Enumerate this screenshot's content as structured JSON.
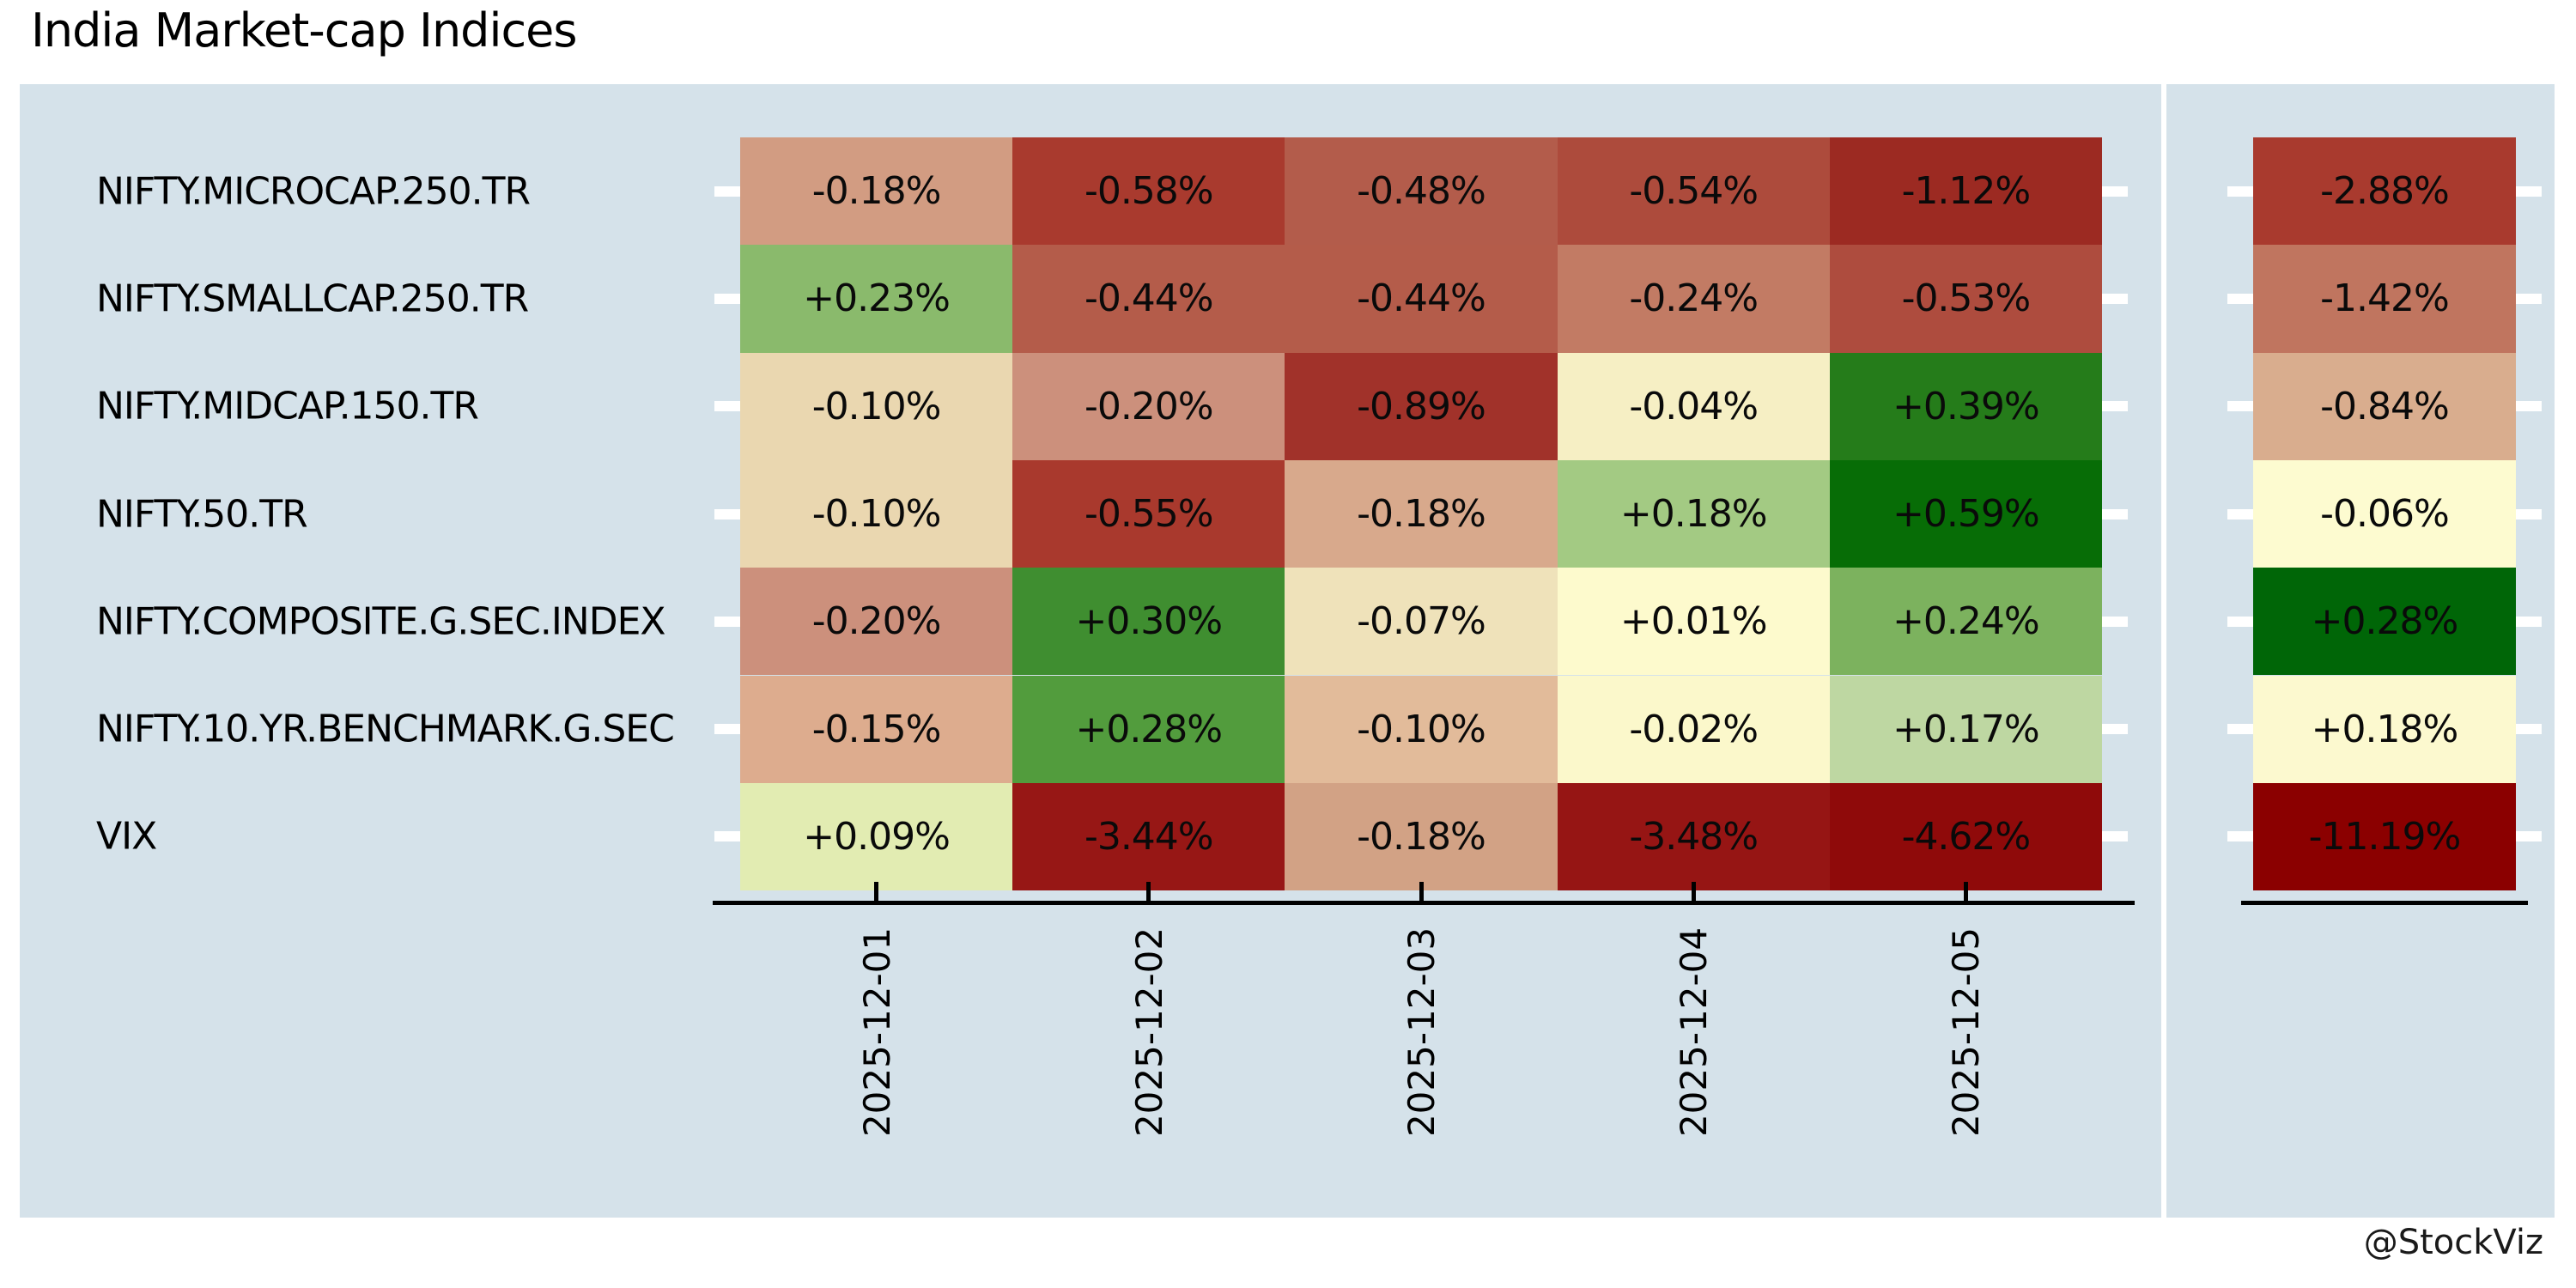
{
  "title": "India Market-cap Indices",
  "attribution": "@StockViz",
  "colors": {
    "background": "#ffffff",
    "panel": "#d5e2ea",
    "axis": "#000000",
    "tick_dash": "#ffffff",
    "text": "#000000"
  },
  "chart_data": {
    "type": "heatmap",
    "title": "India Market-cap Indices",
    "rows": [
      "NIFTY.MICROCAP.250.TR",
      "NIFTY.SMALLCAP.250.TR",
      "NIFTY.MIDCAP.150.TR",
      "NIFTY.50.TR",
      "NIFTY.COMPOSITE.G.SEC.INDEX",
      "NIFTY.10.YR.BENCHMARK.G.SEC",
      "VIX"
    ],
    "columns": [
      "2025-12-01",
      "2025-12-02",
      "2025-12-03",
      "2025-12-04",
      "2025-12-05"
    ],
    "series": [
      {
        "name": "NIFTY.MICROCAP.250.TR",
        "values": [
          -0.18,
          -0.58,
          -0.48,
          -0.54,
          -1.12
        ],
        "total": -2.88
      },
      {
        "name": "NIFTY.SMALLCAP.250.TR",
        "values": [
          0.23,
          -0.44,
          -0.44,
          -0.24,
          -0.53
        ],
        "total": -1.42
      },
      {
        "name": "NIFTY.MIDCAP.150.TR",
        "values": [
          -0.1,
          -0.2,
          -0.89,
          -0.04,
          0.39
        ],
        "total": -0.84
      },
      {
        "name": "NIFTY.50.TR",
        "values": [
          -0.1,
          -0.55,
          -0.18,
          0.18,
          0.59
        ],
        "total": -0.06
      },
      {
        "name": "NIFTY.COMPOSITE.G.SEC.INDEX",
        "values": [
          -0.2,
          0.3,
          -0.07,
          0.01,
          0.24
        ],
        "total": 0.28
      },
      {
        "name": "NIFTY.10.YR.BENCHMARK.G.SEC",
        "values": [
          -0.15,
          0.28,
          -0.1,
          -0.02,
          0.17
        ],
        "total": 0.18
      },
      {
        "name": "VIX",
        "values": [
          0.09,
          -3.44,
          -0.18,
          -3.48,
          -4.62
        ],
        "total": -11.19
      }
    ],
    "cell_labels": [
      [
        "-0.18%",
        "-0.58%",
        "-0.48%",
        "-0.54%",
        "-1.12%"
      ],
      [
        "+0.23%",
        "-0.44%",
        "-0.44%",
        "-0.24%",
        "-0.53%"
      ],
      [
        "-0.10%",
        "-0.20%",
        "-0.89%",
        "-0.04%",
        "+0.39%"
      ],
      [
        "-0.10%",
        "-0.55%",
        "-0.18%",
        "+0.18%",
        "+0.59%"
      ],
      [
        "-0.20%",
        "+0.30%",
        "-0.07%",
        "+0.01%",
        "+0.24%"
      ],
      [
        "-0.15%",
        "+0.28%",
        "-0.10%",
        "-0.02%",
        "+0.17%"
      ],
      [
        "+0.09%",
        "-3.44%",
        "-0.18%",
        "-3.48%",
        "-4.62%"
      ]
    ],
    "cell_colors": [
      [
        "#d29c82",
        "#a93a2e",
        "#b35c4b",
        "#ad4b3c",
        "#9c2a22"
      ],
      [
        "#8aba6c",
        "#b45c4a",
        "#b45c4a",
        "#c27b64",
        "#ae4c3e"
      ],
      [
        "#ead7b0",
        "#cc907c",
        "#a1322a",
        "#f6efc4",
        "#257c1a"
      ],
      [
        "#ead7b0",
        "#a9392d",
        "#d8a98c",
        "#a3ca83",
        "#076d06"
      ],
      [
        "#cc907c",
        "#3f8e30",
        "#efe2ba",
        "#fdfacd",
        "#7cb25e"
      ],
      [
        "#ddac8e",
        "#529c3d",
        "#e2bb9a",
        "#fbf8cb",
        "#bed7a2"
      ],
      [
        "#e2ecb2",
        "#971715",
        "#d2a285",
        "#961514",
        "#8f0a0a"
      ]
    ],
    "total_labels": [
      "-2.88%",
      "-1.42%",
      "-0.84%",
      "-0.06%",
      "+0.28%",
      "+0.18%",
      "-11.19%"
    ],
    "total_colors": [
      "#a93a2e",
      "#c0755f",
      "#d9ad8e",
      "#fdfbd0",
      "#006607",
      "#fcf9cf",
      "#8b0000"
    ],
    "colormap": {
      "negative_end": "#8b0000",
      "neutral": "#fffcd1",
      "positive_end": "#006400"
    },
    "legend": "none",
    "grid": "off",
    "x_tick_rotation": 90
  }
}
